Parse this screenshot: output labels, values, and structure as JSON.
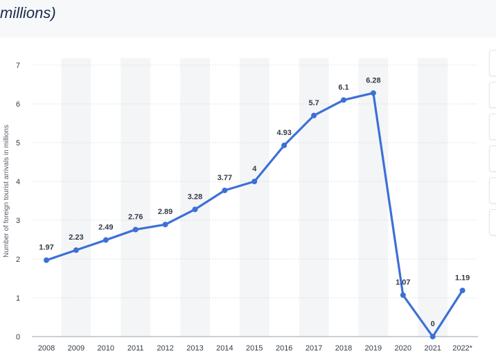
{
  "header": {
    "title_fragment": "millions)"
  },
  "colors": {
    "line": "#3c70d6",
    "stripe": "#f4f5f7",
    "grid": "#c9ccd1"
  },
  "chart_data": {
    "type": "line",
    "title": "",
    "xlabel": "",
    "ylabel": "Number of foreign tourist arrivals in millions",
    "ylim": [
      0,
      7
    ],
    "yticks": [
      "0",
      "1",
      "2",
      "3",
      "4",
      "5",
      "6",
      "7"
    ],
    "grid": "dotted horizontal",
    "categories": [
      "2008",
      "2009",
      "2010",
      "2011",
      "2012",
      "2013",
      "2014",
      "2015",
      "2016",
      "2017",
      "2018",
      "2019",
      "2020",
      "2021",
      "2022*"
    ],
    "series": [
      {
        "values": [
          1.97,
          2.23,
          2.49,
          2.76,
          2.89,
          3.28,
          3.77,
          4,
          4.93,
          5.7,
          6.1,
          6.28,
          1.07,
          0,
          1.19
        ],
        "labels": [
          "1.97",
          "2.23",
          "2.49",
          "2.76",
          "2.89",
          "3.28",
          "3.77",
          "4",
          "4.93",
          "5.7",
          "6.1",
          "6.28",
          "1.07",
          "0",
          "1.19"
        ]
      }
    ]
  }
}
